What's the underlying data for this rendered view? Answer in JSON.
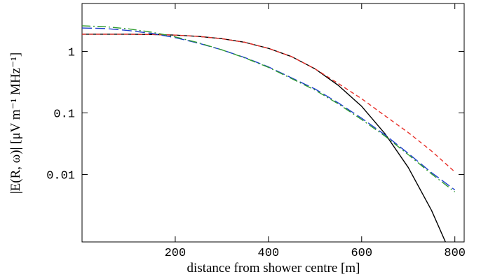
{
  "chart_data": {
    "type": "line",
    "xlabel": "distance from shower centre [m]",
    "ylabel": "|E(R, ω)| [μV m⁻¹ MHz⁻¹]",
    "x": [
      0,
      50,
      100,
      150,
      200,
      250,
      300,
      350,
      400,
      450,
      500,
      550,
      600,
      650,
      700,
      750,
      800
    ],
    "series": [
      {
        "color": "#000000",
        "style": "solid",
        "values": [
          1.9,
          1.9,
          1.9,
          1.88,
          1.84,
          1.75,
          1.61,
          1.4,
          1.12,
          0.82,
          0.52,
          0.28,
          0.128,
          0.046,
          0.013,
          0.0026,
          0.00036
        ]
      },
      {
        "color": "#e8312a",
        "style": "dashed",
        "values": [
          1.9,
          1.9,
          1.9,
          1.88,
          1.84,
          1.75,
          1.61,
          1.4,
          1.12,
          0.82,
          0.52,
          0.3,
          0.17,
          0.09,
          0.048,
          0.024,
          0.011
        ]
      },
      {
        "color": "#1f3fcc",
        "style": "long-dashed",
        "values": [
          2.4,
          2.35,
          2.18,
          1.96,
          1.67,
          1.36,
          1.06,
          0.79,
          0.56,
          0.37,
          0.245,
          0.145,
          0.082,
          0.044,
          0.022,
          0.0107,
          0.0056
        ]
      },
      {
        "color": "#2e9a2e",
        "style": "dash-dot",
        "values": [
          2.6,
          2.52,
          2.32,
          2.05,
          1.72,
          1.38,
          1.06,
          0.78,
          0.55,
          0.36,
          0.235,
          0.14,
          0.078,
          0.042,
          0.021,
          0.0102,
          0.0052
        ]
      }
    ],
    "xlim": [
      0,
      820
    ],
    "xticks": [
      200,
      400,
      600,
      800
    ],
    "ylim": [
      0.0008,
      6
    ],
    "yticks": [
      1,
      0.1,
      0.01
    ],
    "log_y": true,
    "grid": false
  }
}
